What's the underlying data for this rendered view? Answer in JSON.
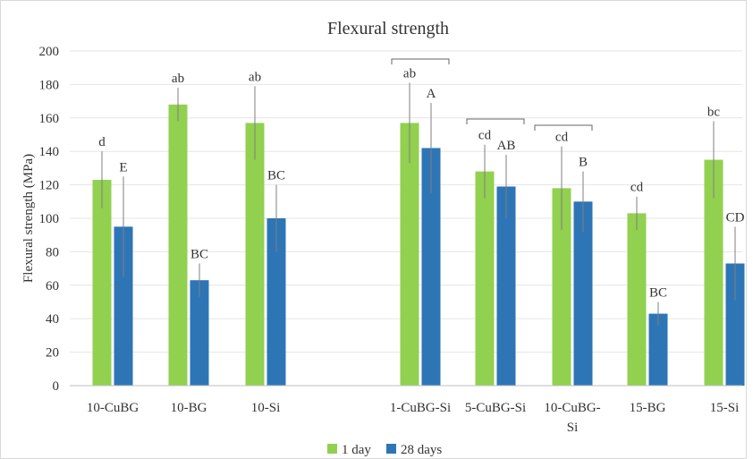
{
  "chart_data": {
    "type": "bar",
    "title": "Flexural strength",
    "ylabel": "Flexural strength (MPa)",
    "xlabel": "",
    "ylim": [
      0,
      200
    ],
    "y_ticks": [
      0,
      20,
      40,
      60,
      80,
      100,
      120,
      140,
      160,
      180,
      200
    ],
    "grid": true,
    "legend_position": "bottom-center",
    "categories": [
      [
        "10-CuBG"
      ],
      [
        "10-BG"
      ],
      [
        "10-Si"
      ],
      [
        "1-CuBG-Si"
      ],
      [
        "5-CuBG-Si"
      ],
      [
        "10-CuBG-",
        "Si"
      ],
      [
        "15-BG"
      ],
      [
        "15-Si"
      ]
    ],
    "series": [
      {
        "name": "1 day",
        "color": "#92d050",
        "values": [
          123,
          168,
          157,
          157,
          128,
          118,
          103,
          135
        ],
        "errors": [
          17,
          10,
          22,
          24,
          16,
          25,
          10,
          23
        ],
        "labels": [
          "d",
          "ab",
          "ab",
          "ab",
          "cd",
          "cd",
          "cd",
          "bc"
        ]
      },
      {
        "name": "28 days",
        "color": "#2e75b6",
        "values": [
          95,
          63,
          100,
          142,
          119,
          110,
          43,
          73
        ],
        "errors": [
          30,
          10,
          20,
          27,
          19,
          18,
          7,
          22
        ],
        "labels": [
          "E",
          "BC",
          "BC",
          "A",
          "AB",
          "B",
          "BC",
          "CD"
        ]
      }
    ],
    "brackets": [
      {
        "from": "1-CuBG-Si",
        "to": "1-CuBG-Si"
      },
      {
        "from": "5-CuBG-Si",
        "to": "5-CuBG-Si"
      },
      {
        "from": "10-CuBG-Si",
        "to": "10-CuBG-Si"
      }
    ]
  }
}
